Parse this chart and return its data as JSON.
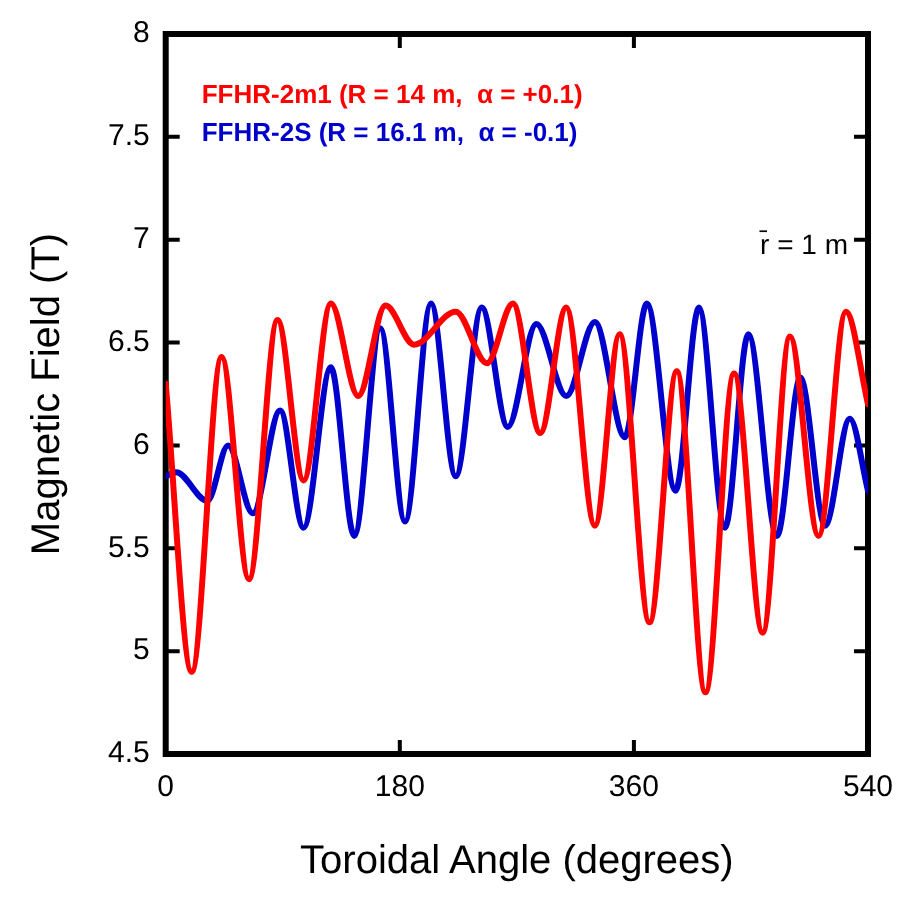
{
  "chart_data": {
    "type": "line",
    "xlabel": "Toroidal Angle (degrees)",
    "ylabel": "Magnetic Field (T)",
    "xlim": [
      0,
      540
    ],
    "xticks": [
      0,
      180,
      360,
      540
    ],
    "ylim": [
      4.5,
      8
    ],
    "yticks": [
      4.5,
      5,
      5.5,
      6,
      6.5,
      7,
      7.5,
      8
    ],
    "grid": false,
    "legend": "top left",
    "marker": "none",
    "line_style": "solid",
    "annotations": [
      "r̄ = 1 m"
    ],
    "series": [
      {
        "name": "FFHR-2m1 (R = 14 m,  α = +0.1)",
        "color": "#ff0000",
        "x": [
          0,
          20,
          43,
          64,
          86,
          106,
          127,
          148,
          169,
          191,
          223,
          247,
          267,
          288,
          308,
          330,
          349,
          372,
          393,
          415,
          437,
          459,
          480,
          502,
          523,
          540
        ],
        "values": [
          6.3,
          4.9,
          6.43,
          5.35,
          6.61,
          5.83,
          6.69,
          6.24,
          6.68,
          6.49,
          6.65,
          6.4,
          6.69,
          6.06,
          6.67,
          5.61,
          6.54,
          5.14,
          6.36,
          4.8,
          6.35,
          5.09,
          6.53,
          5.56,
          6.65,
          6.2
        ]
      },
      {
        "name": "FFHR-2S (R = 16.1 m,  α = -0.1)",
        "color": "#0000cc",
        "x": [
          0,
          8,
          32,
          48,
          67,
          88,
          106,
          127,
          145,
          165,
          184,
          204,
          223,
          243,
          263,
          285,
          308,
          330,
          353,
          370,
          392,
          410,
          430,
          448,
          470,
          488,
          507,
          526,
          540
        ],
        "values": [
          5.85,
          5.87,
          5.73,
          6.0,
          5.67,
          6.17,
          5.6,
          6.38,
          5.56,
          6.57,
          5.63,
          6.69,
          5.85,
          6.67,
          6.09,
          6.59,
          6.24,
          6.6,
          6.04,
          6.69,
          5.78,
          6.67,
          5.6,
          6.54,
          5.56,
          6.33,
          5.61,
          6.13,
          5.78
        ]
      }
    ]
  }
}
